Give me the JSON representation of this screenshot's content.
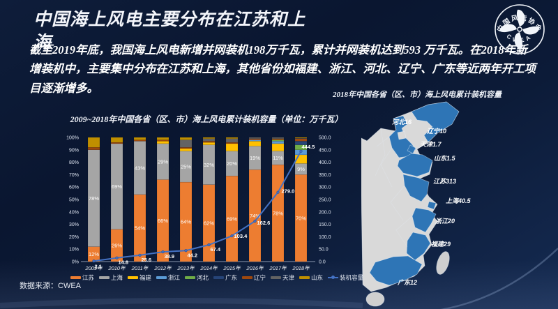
{
  "slide": {
    "title": "中国海上风电主要分布在江苏和上海",
    "body": "截至2019年底，我国海上风电新增并网装机198万千瓦，累计并网装机达到593 万千瓦。在2018年新增装机中，主要集中分布在江苏和上海，其他省份如福建、浙江、河北、辽宁、广东等近两年开工项目逐渐增多。",
    "source": "数据来源：CWEA"
  },
  "logo": {
    "org_name": "中国风能协会",
    "abbr": "CWEA"
  },
  "chart_data": {
    "type": "bar",
    "stacked": true,
    "title": "2009~2018年中国各省（区、市）海上风电累计装机容量（单位：万千瓦）",
    "categories": [
      "2009年",
      "2010年",
      "2011年",
      "2012年",
      "2013年",
      "2014年",
      "2015年",
      "2016年",
      "2017年",
      "2018年"
    ],
    "series": [
      {
        "name": "江苏",
        "color": "#ED7D31",
        "values": [
          12,
          26,
          54,
          66,
          64,
          62,
          69,
          74,
          78,
          70
        ]
      },
      {
        "name": "上海",
        "color": "#A5A5A5",
        "values": [
          78,
          69,
          43,
          29,
          25,
          32,
          20,
          19,
          11,
          9
        ]
      },
      {
        "name": "福建",
        "color": "#FFC000",
        "values": [
          0,
          0,
          0,
          2,
          2,
          2,
          6,
          4,
          6,
          7
        ]
      },
      {
        "name": "浙江",
        "color": "#5B9BD5",
        "values": [
          0,
          0,
          0,
          0,
          0,
          0,
          0,
          1,
          2,
          4
        ]
      },
      {
        "name": "河北",
        "color": "#70AD47",
        "values": [
          0,
          0,
          0,
          0,
          0,
          0,
          0,
          0,
          1,
          4
        ]
      },
      {
        "name": "广东",
        "color": "#264478",
        "values": [
          0,
          0,
          0,
          0,
          0,
          0,
          0,
          0,
          0,
          3
        ]
      },
      {
        "name": "辽宁",
        "color": "#9E480E",
        "values": [
          2,
          1,
          1,
          1,
          1,
          1,
          1,
          1,
          1,
          2
        ]
      },
      {
        "name": "天津",
        "color": "#636363",
        "values": [
          0,
          0,
          0,
          0,
          6,
          2,
          3,
          1,
          1,
          0.4
        ]
      },
      {
        "name": "山东",
        "color": "#BF8F00",
        "values": [
          8,
          4,
          2,
          2,
          2,
          1,
          1,
          0,
          0,
          0.6
        ]
      }
    ],
    "line_series": {
      "name": "装机容量",
      "color": "#4472C4",
      "values": [
        2.1,
        14.8,
        25.6,
        38.9,
        44.2,
        67.4,
        103.4,
        162.6,
        279.0,
        444.5
      ]
    },
    "y_left": {
      "min": 0,
      "max": 100,
      "step": 10,
      "format": "percent"
    },
    "y_right": {
      "min": 0,
      "max": 500,
      "step": 50,
      "format": "one_decimal"
    },
    "legend_position": "bottom",
    "grid": false
  },
  "map": {
    "title": "2018年中国各省（区、市）海上风电累计装机容量",
    "labels": [
      {
        "name": "河北",
        "value": "16"
      },
      {
        "name": "辽宁",
        "value": "10"
      },
      {
        "name": "天津",
        "value": "1.7"
      },
      {
        "name": "山东",
        "value": "1.5"
      },
      {
        "name": "江苏",
        "value": "313"
      },
      {
        "name": "上海",
        "value": "40.5"
      },
      {
        "name": "浙江",
        "value": "20"
      },
      {
        "name": "福建",
        "value": "29"
      },
      {
        "name": "广东",
        "value": "12"
      }
    ],
    "colors": {
      "coastal_province": "#2E75B6",
      "inland_province": "#D9D9D9",
      "island_gray": "#CFCFCF"
    }
  }
}
